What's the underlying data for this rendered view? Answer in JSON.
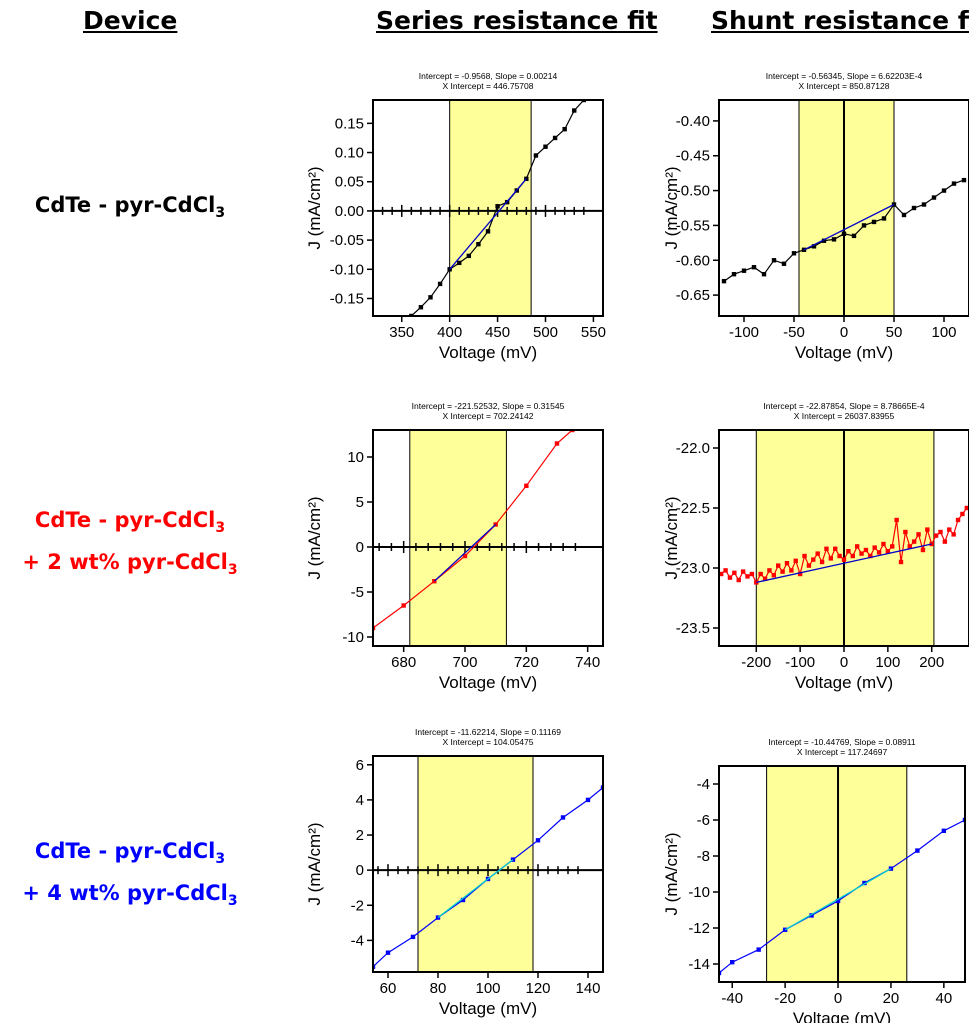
{
  "headers": {
    "device": "Device",
    "series": "Series resistance fit",
    "shunt": "Shunt resistance fit"
  },
  "devices": [
    {
      "line1": "CdTe - pyr-CdCl",
      "sub1": "3",
      "line2": "",
      "sub2": "",
      "color": "#000000"
    },
    {
      "line1": "CdTe - pyr-CdCl",
      "sub1": "3",
      "line2": "+ 2 wt% pyr-CdCl",
      "sub2": "3",
      "color": "#ff0000"
    },
    {
      "line1": "CdTe - pyr-CdCl",
      "sub1": "3",
      "line2": "+ 4 wt% pyr-CdCl",
      "sub2": "3",
      "color": "#0000ff"
    }
  ],
  "chart_data": [
    {
      "type": "line",
      "id": "series-1",
      "fit_line1": "Intercept = -0.9568, Slope = 0.00214",
      "fit_line2": "X Intercept = 446.75708",
      "xlabel": "Voltage (mV)",
      "ylabel": "J (mA/cm²)",
      "xlim": [
        320,
        560
      ],
      "ylim": [
        -0.18,
        0.19
      ],
      "xticks": [
        350,
        400,
        450,
        500,
        550
      ],
      "xtick_labels": [
        "350",
        "400",
        "450",
        "500",
        "550"
      ],
      "yticks": [
        -0.15,
        -0.1,
        -0.05,
        0.0,
        0.05,
        0.1,
        0.15
      ],
      "ytick_labels": [
        "-0.15",
        "-0.10",
        "-0.05",
        "0.00",
        "0.05",
        "0.10",
        "0.15"
      ],
      "fit_range": [
        400,
        485
      ],
      "vline": null,
      "hline": 0,
      "data_color": "#000000",
      "fit_color": "#0000cc",
      "x": [
        360,
        370,
        380,
        390,
        400,
        410,
        420,
        430,
        440,
        450,
        460,
        470,
        480,
        490,
        500,
        510,
        520,
        530,
        540
      ],
      "y": [
        -0.18,
        -0.165,
        -0.148,
        -0.125,
        -0.1,
        -0.089,
        -0.077,
        -0.057,
        -0.035,
        0.008,
        0.015,
        0.035,
        0.055,
        0.095,
        0.11,
        0.125,
        0.14,
        0.172,
        0.19
      ]
    },
    {
      "type": "line",
      "id": "shunt-1",
      "fit_line1": "Intercept = -0.56345, Slope = 6.62203E-4",
      "fit_line2": "X Intercept = 850.87128",
      "xlabel": "Voltage (mV)",
      "ylabel": "J (mA/cm²)",
      "xlim": [
        -125,
        125
      ],
      "ylim": [
        -0.68,
        -0.37
      ],
      "xticks": [
        -100,
        -50,
        0,
        50,
        100
      ],
      "xtick_labels": [
        "-100",
        "-50",
        "0",
        "50",
        "100"
      ],
      "yticks": [
        -0.65,
        -0.6,
        -0.55,
        -0.5,
        -0.45,
        -0.4
      ],
      "ytick_labels": [
        "-0.65",
        "-0.60",
        "-0.55",
        "-0.50",
        "-0.45",
        "-0.40"
      ],
      "fit_range": [
        -45,
        50
      ],
      "vline": 0,
      "hline": null,
      "data_color": "#000000",
      "fit_color": "#0000cc",
      "x": [
        -120,
        -110,
        -100,
        -90,
        -80,
        -70,
        -60,
        -50,
        -40,
        -30,
        -20,
        -10,
        0,
        10,
        20,
        30,
        40,
        50,
        60,
        70,
        80,
        90,
        100,
        110,
        120
      ],
      "y": [
        -0.63,
        -0.62,
        -0.615,
        -0.61,
        -0.62,
        -0.6,
        -0.605,
        -0.59,
        -0.585,
        -0.58,
        -0.572,
        -0.57,
        -0.562,
        -0.565,
        -0.55,
        -0.545,
        -0.54,
        -0.52,
        -0.535,
        -0.525,
        -0.52,
        -0.51,
        -0.5,
        -0.49,
        -0.485
      ]
    },
    {
      "type": "line",
      "id": "series-2",
      "fit_line1": "Intercept = -221.52532, Slope = 0.31545",
      "fit_line2": "X Intercept = 702.24142",
      "xlabel": "Voltage (mV)",
      "ylabel": "J (mA/cm²)",
      "xlim": [
        670,
        745
      ],
      "ylim": [
        -11,
        13
      ],
      "xticks": [
        680,
        700,
        720,
        740
      ],
      "xtick_labels": [
        "680",
        "700",
        "720",
        "740"
      ],
      "yticks": [
        -10,
        -5,
        0,
        5,
        10
      ],
      "ytick_labels": [
        "-10",
        "-5",
        "0",
        "5",
        "10"
      ],
      "fit_range": [
        682,
        713.5
      ],
      "vline": null,
      "hline": 0,
      "data_color": "#ff0000",
      "fit_color": "#0000cc",
      "x": [
        670,
        680,
        690,
        700,
        710,
        720,
        730,
        735
      ],
      "y": [
        -9.0,
        -6.5,
        -3.8,
        -1.0,
        2.5,
        6.8,
        11.5,
        13.0
      ]
    },
    {
      "type": "line",
      "id": "shunt-2",
      "fit_line1": "Intercept = -22.87854, Slope = 8.78665E-4",
      "fit_line2": "X Intercept = 26037.83955",
      "xlabel": "Voltage (mV)",
      "ylabel": "J (mA/cm²)",
      "xlim": [
        -285,
        285
      ],
      "ylim": [
        -23.65,
        -21.85
      ],
      "xticks": [
        -200,
        -100,
        0,
        100,
        200
      ],
      "xtick_labels": [
        "-200",
        "-100",
        "0",
        "100",
        "200"
      ],
      "yticks": [
        -23.5,
        -23.0,
        -22.5,
        -22.0
      ],
      "ytick_labels": [
        "-23.5",
        "-23.0",
        "-22.5",
        "-22.0"
      ],
      "fit_range": [
        -200,
        205
      ],
      "vline": 0,
      "hline": null,
      "data_color": "#ff0000",
      "fit_color": "#0000cc",
      "x": [
        -280,
        -270,
        -260,
        -250,
        -240,
        -230,
        -220,
        -210,
        -200,
        -190,
        -180,
        -170,
        -160,
        -150,
        -140,
        -130,
        -120,
        -110,
        -100,
        -90,
        -80,
        -70,
        -60,
        -50,
        -40,
        -30,
        -20,
        -10,
        0,
        10,
        20,
        30,
        40,
        50,
        60,
        70,
        80,
        90,
        100,
        110,
        120,
        130,
        140,
        150,
        160,
        170,
        180,
        190,
        200,
        210,
        220,
        230,
        240,
        250,
        260,
        270,
        280
      ],
      "y": [
        -23.05,
        -23.02,
        -23.08,
        -23.04,
        -23.1,
        -23.03,
        -23.07,
        -23.05,
        -23.12,
        -23.05,
        -23.09,
        -23.02,
        -23.06,
        -22.98,
        -23.03,
        -22.96,
        -23.02,
        -22.94,
        -23.05,
        -22.9,
        -22.98,
        -22.93,
        -22.88,
        -22.95,
        -22.84,
        -22.92,
        -22.84,
        -22.9,
        -22.93,
        -22.86,
        -22.9,
        -22.82,
        -22.88,
        -22.85,
        -22.9,
        -22.83,
        -22.87,
        -22.8,
        -22.86,
        -22.82,
        -22.6,
        -22.95,
        -22.7,
        -22.82,
        -22.78,
        -22.72,
        -22.85,
        -22.68,
        -22.8,
        -22.73,
        -22.7,
        -22.78,
        -22.68,
        -22.72,
        -22.6,
        -22.55,
        -22.5
      ]
    },
    {
      "type": "line",
      "id": "series-3",
      "fit_line1": "Intercept = -11.62214, Slope = 0.11169",
      "fit_line2": "X Intercept = 104.05475",
      "xlabel": "Voltage (mV)",
      "ylabel": "J (mA/cm²)",
      "xlim": [
        54,
        146
      ],
      "ylim": [
        -5.8,
        6.5
      ],
      "xticks": [
        60,
        80,
        100,
        120,
        140
      ],
      "xtick_labels": [
        "60",
        "80",
        "100",
        "120",
        "140"
      ],
      "yticks": [
        -4,
        -2,
        0,
        2,
        4,
        6
      ],
      "ytick_labels": [
        "-4",
        "-2",
        "0",
        "2",
        "4",
        "6"
      ],
      "fit_range": [
        72,
        118
      ],
      "vline": null,
      "hline": 0,
      "data_color": "#0000ff",
      "fit_color": "#00cccc",
      "x": [
        54,
        60,
        70,
        80,
        90,
        100,
        110,
        120,
        130,
        140,
        146
      ],
      "y": [
        -5.5,
        -4.7,
        -3.8,
        -2.7,
        -1.7,
        -0.5,
        0.6,
        1.7,
        3.0,
        4.0,
        4.7
      ]
    },
    {
      "type": "line",
      "id": "shunt-3",
      "fit_line1": "Intercept = -10.44769, Slope = 0.08911",
      "fit_line2": "X Intercept = 117.24697",
      "xlabel": "Voltage (mV)",
      "ylabel": "J (mA/cm²)",
      "xlim": [
        -45,
        48
      ],
      "ylim": [
        -15.0,
        -3.0
      ],
      "xticks": [
        -40,
        -20,
        0,
        20,
        40
      ],
      "xtick_labels": [
        "-40",
        "-20",
        "0",
        "20",
        "40"
      ],
      "yticks": [
        -14,
        -12,
        -10,
        -8,
        -6,
        -4
      ],
      "ytick_labels": [
        "-14",
        "-12",
        "-10",
        "-8",
        "-6",
        "-4"
      ],
      "fit_range": [
        -27,
        26
      ],
      "vline": 0,
      "hline": null,
      "data_color": "#0000ff",
      "fit_color": "#00cccc",
      "x": [
        -45,
        -40,
        -30,
        -20,
        -10,
        0,
        10,
        20,
        30,
        40,
        48
      ],
      "y": [
        -14.5,
        -13.9,
        -13.2,
        -12.1,
        -11.3,
        -10.5,
        -9.5,
        -8.7,
        -7.7,
        -6.6,
        -6.0
      ]
    }
  ]
}
